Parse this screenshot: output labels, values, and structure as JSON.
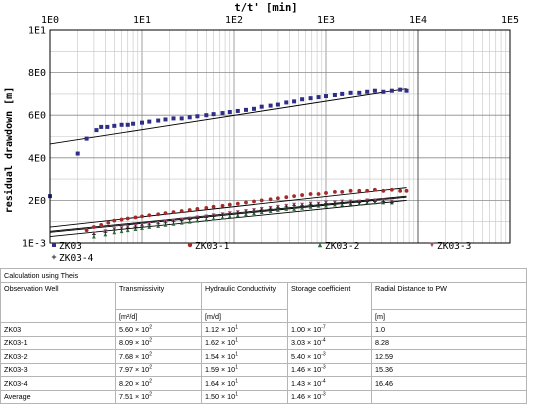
{
  "chart_data": {
    "type": "scatter",
    "title": "t/t' [min]",
    "xlabel": "t/t' [min]",
    "ylabel": "residual drawdown [m]",
    "x_scale": "log",
    "x_ticks": [
      "1E0",
      "1E1",
      "1E2",
      "1E3",
      "1E4",
      "1E5"
    ],
    "y_ticks": [
      "1E-3",
      "2E0",
      "4E0",
      "6E0",
      "8E0",
      "1E1"
    ],
    "xlim": [
      1,
      100000
    ],
    "ylim": [
      0,
      10
    ],
    "grid": true,
    "legend_position": "bottom",
    "series": [
      {
        "name": "ZK03",
        "marker": "square",
        "color": "#2e2e86",
        "points": [
          [
            1.0,
            2.2
          ],
          [
            2.0,
            4.2
          ],
          [
            2.5,
            4.9
          ],
          [
            3.2,
            5.3
          ],
          [
            3.6,
            5.45
          ],
          [
            4.2,
            5.45
          ],
          [
            5,
            5.5
          ],
          [
            6,
            5.55
          ],
          [
            7,
            5.55
          ],
          [
            8,
            5.6
          ],
          [
            10,
            5.65
          ],
          [
            12,
            5.7
          ],
          [
            15,
            5.75
          ],
          [
            18,
            5.8
          ],
          [
            22,
            5.85
          ],
          [
            27,
            5.85
          ],
          [
            33,
            5.9
          ],
          [
            40,
            5.95
          ],
          [
            50,
            6.0
          ],
          [
            60,
            6.05
          ],
          [
            75,
            6.1
          ],
          [
            90,
            6.15
          ],
          [
            110,
            6.2
          ],
          [
            135,
            6.25
          ],
          [
            165,
            6.3
          ],
          [
            200,
            6.4
          ],
          [
            250,
            6.45
          ],
          [
            300,
            6.5
          ],
          [
            370,
            6.6
          ],
          [
            450,
            6.65
          ],
          [
            550,
            6.75
          ],
          [
            680,
            6.8
          ],
          [
            830,
            6.85
          ],
          [
            1000,
            6.9
          ],
          [
            1250,
            6.95
          ],
          [
            1500,
            7.0
          ],
          [
            1850,
            7.05
          ],
          [
            2300,
            7.05
          ],
          [
            2800,
            7.1
          ],
          [
            3400,
            7.15
          ],
          [
            4200,
            7.1
          ],
          [
            5200,
            7.15
          ],
          [
            6400,
            7.2
          ],
          [
            7500,
            7.15
          ]
        ],
        "fit": [
          [
            1,
            4.65
          ],
          [
            7500,
            7.25
          ]
        ]
      },
      {
        "name": "ZK03-1",
        "marker": "circle",
        "color": "#a52a2a",
        "points": [
          [
            2.5,
            0.6
          ],
          [
            3,
            0.75
          ],
          [
            3.6,
            0.85
          ],
          [
            4.3,
            0.95
          ],
          [
            5,
            1.05
          ],
          [
            6,
            1.1
          ],
          [
            7,
            1.15
          ],
          [
            8.5,
            1.2
          ],
          [
            10,
            1.25
          ],
          [
            12,
            1.3
          ],
          [
            15,
            1.35
          ],
          [
            18,
            1.4
          ],
          [
            22,
            1.45
          ],
          [
            27,
            1.5
          ],
          [
            33,
            1.55
          ],
          [
            40,
            1.6
          ],
          [
            50,
            1.65
          ],
          [
            60,
            1.7
          ],
          [
            75,
            1.75
          ],
          [
            90,
            1.8
          ],
          [
            110,
            1.85
          ],
          [
            135,
            1.9
          ],
          [
            165,
            1.95
          ],
          [
            200,
            2.0
          ],
          [
            250,
            2.05
          ],
          [
            300,
            2.1
          ],
          [
            370,
            2.15
          ],
          [
            450,
            2.2
          ],
          [
            550,
            2.25
          ],
          [
            680,
            2.3
          ],
          [
            830,
            2.3
          ],
          [
            1000,
            2.35
          ],
          [
            1250,
            2.4
          ],
          [
            1500,
            2.4
          ],
          [
            1850,
            2.45
          ],
          [
            2300,
            2.45
          ],
          [
            2800,
            2.45
          ],
          [
            3400,
            2.5
          ],
          [
            4200,
            2.45
          ],
          [
            5200,
            2.5
          ],
          [
            6400,
            2.45
          ],
          [
            7500,
            2.45
          ]
        ],
        "fit": [
          [
            1,
            0.75
          ],
          [
            7500,
            2.6
          ]
        ]
      },
      {
        "name": "ZK03-2",
        "marker": "triangle",
        "color": "#2e6b3a",
        "points": [
          [
            3,
            0.3
          ],
          [
            4,
            0.4
          ],
          [
            5,
            0.5
          ],
          [
            6,
            0.55
          ],
          [
            7,
            0.6
          ],
          [
            8.5,
            0.65
          ],
          [
            10,
            0.7
          ],
          [
            12,
            0.75
          ],
          [
            15,
            0.8
          ],
          [
            18,
            0.85
          ],
          [
            22,
            0.9
          ],
          [
            27,
            0.95
          ],
          [
            33,
            1.0
          ],
          [
            40,
            1.05
          ],
          [
            50,
            1.1
          ],
          [
            60,
            1.15
          ],
          [
            75,
            1.2
          ],
          [
            90,
            1.25
          ],
          [
            110,
            1.3
          ],
          [
            135,
            1.35
          ],
          [
            165,
            1.4
          ],
          [
            200,
            1.45
          ],
          [
            250,
            1.5
          ],
          [
            300,
            1.55
          ],
          [
            370,
            1.6
          ],
          [
            450,
            1.6
          ],
          [
            550,
            1.65
          ],
          [
            680,
            1.7
          ],
          [
            830,
            1.75
          ],
          [
            1000,
            1.75
          ],
          [
            1250,
            1.8
          ],
          [
            1500,
            1.8
          ],
          [
            1850,
            1.85
          ],
          [
            2300,
            1.85
          ],
          [
            2800,
            1.9
          ],
          [
            3400,
            1.9
          ],
          [
            4200,
            1.9
          ],
          [
            5200,
            1.9
          ]
        ],
        "fit": [
          [
            1,
            0.3
          ],
          [
            7500,
            2.0
          ]
        ]
      },
      {
        "name": "ZK03-3",
        "marker": "triangle-down",
        "color": "#9a4a6e",
        "points": [
          [
            3,
            0.45
          ],
          [
            4,
            0.55
          ],
          [
            5,
            0.65
          ],
          [
            6,
            0.7
          ],
          [
            7,
            0.75
          ],
          [
            8.5,
            0.8
          ],
          [
            10,
            0.85
          ],
          [
            12,
            0.9
          ],
          [
            15,
            0.95
          ],
          [
            18,
            1.0
          ],
          [
            22,
            1.05
          ],
          [
            27,
            1.1
          ],
          [
            33,
            1.15
          ],
          [
            40,
            1.2
          ],
          [
            50,
            1.25
          ],
          [
            60,
            1.3
          ],
          [
            75,
            1.35
          ],
          [
            90,
            1.4
          ],
          [
            110,
            1.45
          ],
          [
            135,
            1.5
          ],
          [
            165,
            1.55
          ],
          [
            200,
            1.6
          ],
          [
            250,
            1.65
          ],
          [
            300,
            1.7
          ],
          [
            370,
            1.75
          ],
          [
            450,
            1.8
          ],
          [
            550,
            1.8
          ],
          [
            680,
            1.85
          ],
          [
            830,
            1.85
          ],
          [
            1000,
            1.9
          ],
          [
            1250,
            1.9
          ],
          [
            1500,
            1.95
          ],
          [
            1850,
            1.95
          ],
          [
            2300,
            1.95
          ],
          [
            2800,
            2.0
          ],
          [
            3400,
            2.0
          ],
          [
            4200,
            2.0
          ],
          [
            5200,
            1.95
          ]
        ],
        "fit": [
          [
            1,
            0.55
          ],
          [
            7500,
            2.2
          ]
        ]
      },
      {
        "name": "ZK03-4",
        "marker": "plus",
        "color": "#222222",
        "points": [
          [
            3,
            0.4
          ],
          [
            4,
            0.5
          ],
          [
            5,
            0.6
          ],
          [
            6,
            0.65
          ],
          [
            7,
            0.7
          ],
          [
            8.5,
            0.75
          ],
          [
            10,
            0.8
          ],
          [
            12,
            0.85
          ],
          [
            15,
            0.9
          ],
          [
            18,
            0.95
          ],
          [
            22,
            1.0
          ],
          [
            27,
            1.05
          ],
          [
            33,
            1.1
          ],
          [
            40,
            1.15
          ],
          [
            50,
            1.2
          ],
          [
            60,
            1.25
          ],
          [
            75,
            1.3
          ],
          [
            90,
            1.35
          ],
          [
            110,
            1.4
          ],
          [
            135,
            1.45
          ],
          [
            165,
            1.5
          ],
          [
            200,
            1.55
          ],
          [
            250,
            1.6
          ],
          [
            300,
            1.65
          ],
          [
            370,
            1.7
          ],
          [
            450,
            1.75
          ],
          [
            550,
            1.75
          ],
          [
            680,
            1.8
          ],
          [
            830,
            1.8
          ],
          [
            1000,
            1.85
          ],
          [
            1250,
            1.85
          ],
          [
            1500,
            1.9
          ],
          [
            1850,
            1.9
          ],
          [
            2300,
            1.9
          ],
          [
            2800,
            1.95
          ],
          [
            3400,
            1.95
          ],
          [
            4200,
            1.95
          ],
          [
            5200,
            1.9
          ]
        ],
        "fit": [
          [
            1,
            0.5
          ],
          [
            7500,
            2.15
          ]
        ]
      }
    ]
  },
  "table": {
    "caption": "Calculation using Theis",
    "headers": [
      "Observation Well",
      "Transmissivity",
      "Hydraulic Conductivity",
      "Storage coefficient",
      "Radial Distance to PW"
    ],
    "units": [
      "",
      "[m²/d]",
      "[m/d]",
      "",
      "[m]"
    ],
    "rows": [
      {
        "well": "ZK03",
        "t_m": "5.60 × 10",
        "t_e": "2",
        "k_m": "1.12 × 10",
        "k_e": "1",
        "s_m": "1.00 × 10",
        "s_e": "-7",
        "r": "1.0"
      },
      {
        "well": "ZK03-1",
        "t_m": "8.09 × 10",
        "t_e": "2",
        "k_m": "1.62 × 10",
        "k_e": "1",
        "s_m": "3.03 × 10",
        "s_e": "-4",
        "r": "8.28"
      },
      {
        "well": "ZK03-2",
        "t_m": "7.68 × 10",
        "t_e": "2",
        "k_m": "1.54 × 10",
        "k_e": "1",
        "s_m": "5.40 × 10",
        "s_e": "-3",
        "r": "12.59"
      },
      {
        "well": "ZK03-3",
        "t_m": "7.97 × 10",
        "t_e": "2",
        "k_m": "1.59 × 10",
        "k_e": "1",
        "s_m": "1.46 × 10",
        "s_e": "-3",
        "r": "15.36"
      },
      {
        "well": "ZK03-4",
        "t_m": "8.20 × 10",
        "t_e": "2",
        "k_m": "1.64 × 10",
        "k_e": "1",
        "s_m": "1.43 × 10",
        "s_e": "-4",
        "r": "16.46"
      },
      {
        "well": "Average",
        "t_m": "7.51 × 10",
        "t_e": "2",
        "k_m": "1.50 × 10",
        "k_e": "1",
        "s_m": "1.46 × 10",
        "s_e": "-3",
        "r": ""
      }
    ]
  }
}
